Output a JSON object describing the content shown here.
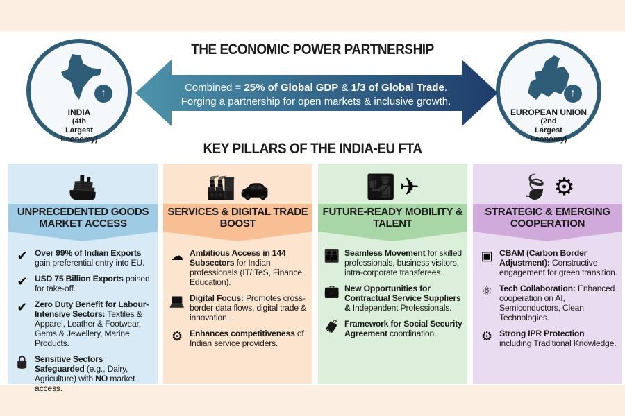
{
  "title": "THE ECONOMIC POWER PARTNERSHIP",
  "india": {
    "name": "INDIA",
    "rank": "(4th Largest Economy)"
  },
  "eu": {
    "name": "EUROPEAN UNION",
    "rank": "(2nd Largest Economy)"
  },
  "arrow": {
    "line1_pre": "Combined = ",
    "line1_bold": "25% of Global GDP",
    "line1_mid": " & ",
    "line1_bold2": "1/3 of Global Trade",
    "line1_end": ".",
    "line2": "Forging a partnership for open markets & inclusive growth."
  },
  "subtitle": "KEY PILLARS OF THE INDIA-EU FTA",
  "colors": {
    "navy": "#2f5d78",
    "arrow_start": "#4d93ab",
    "arrow_end": "#1e3c6a"
  },
  "columns": [
    {
      "title": "UNPRECEDENTED GOODS MARKET ACCESS",
      "bg": "#d7eaf6",
      "header": "#9fcbe5",
      "icons": [
        "ship-icon"
      ],
      "items": [
        {
          "icon": "check-circle-icon",
          "segments": [
            {
              "b": true,
              "t": "Over 99% of Indian Exports"
            },
            {
              "b": false,
              "t": " gain preferential entry into EU."
            }
          ]
        },
        {
          "icon": "check-circle-icon",
          "segments": [
            {
              "b": true,
              "t": "USD 75 Billion Exports"
            },
            {
              "b": false,
              "t": " poised for take-off."
            }
          ]
        },
        {
          "icon": "check-circle-icon",
          "segments": [
            {
              "b": true,
              "t": "Zero Duty Benefit for Labour-Intensive Sectors:"
            },
            {
              "b": false,
              "t": " Textiles & Apparel, Leather & Footwear, Gems & Jewellery, Marine Products."
            }
          ]
        },
        {
          "icon": "shield-lock-icon",
          "segments": [
            {
              "b": true,
              "t": "Sensitive Sectors Safeguarded"
            },
            {
              "b": false,
              "t": " (e.g., Dairy, Agriculture) with "
            },
            {
              "b": true,
              "t": "NO"
            },
            {
              "b": false,
              "t": " market access."
            }
          ]
        }
      ]
    },
    {
      "title": "SERVICES & DIGITAL TRADE BOOST",
      "bg": "#fde4cf",
      "header": "#f7bf93",
      "icons": [
        "factory-icon",
        "car-icon"
      ],
      "items": [
        {
          "icon": "cloud-network-icon",
          "segments": [
            {
              "b": true,
              "t": "Ambitious Access in 144 Subsectors"
            },
            {
              "b": false,
              "t": " for Indian professionals (IT/ITeS, Finance, Education)."
            }
          ]
        },
        {
          "icon": "laptop-icon",
          "segments": [
            {
              "b": true,
              "t": "Digital Focus:"
            },
            {
              "b": false,
              "t": " Promotes cross-border data flows, digital trade & innovation."
            }
          ]
        },
        {
          "icon": "gear-people-icon",
          "segments": [
            {
              "b": true,
              "t": "Enhances competitiveness"
            },
            {
              "b": false,
              "t": " of Indian service providers."
            }
          ]
        }
      ]
    },
    {
      "title": "FUTURE-READY MOBILITY & TALENT",
      "bg": "#dbefda",
      "header": "#a9d6a7",
      "icons": [
        "passport-icon",
        "airplane-icon"
      ],
      "items": [
        {
          "icon": "family-icon",
          "segments": [
            {
              "b": true,
              "t": "Seamless Movement"
            },
            {
              "b": false,
              "t": " for skilled professionals, business visitors, intra-corporate transferees."
            }
          ]
        },
        {
          "icon": "briefcase-icon",
          "segments": [
            {
              "b": true,
              "t": "New Opportunities for Contractual Service Suppliers &"
            },
            {
              "b": false,
              "t": " Independent Professionals."
            }
          ]
        },
        {
          "icon": "suitcase-icon",
          "segments": [
            {
              "b": true,
              "t": "Framework for Social Security Agreement"
            },
            {
              "b": false,
              "t": " coordination."
            }
          ]
        }
      ]
    },
    {
      "title": "STRATEGIC & EMERGING COOPERATION",
      "bg": "#eadcf0",
      "header": "#d0aada",
      "icons": [
        "leaf-icon",
        "gear-icon"
      ],
      "items": [
        {
          "icon": "chip-icon",
          "segments": [
            {
              "b": true,
              "t": "CBAM (Carbon Border Adjustment):"
            },
            {
              "b": false,
              "t": " Constructive engagement for green transition."
            }
          ]
        },
        {
          "icon": "atom-icon",
          "segments": [
            {
              "b": true,
              "t": "Tech Collaboration:"
            },
            {
              "b": false,
              "t": " Enhanced cooperation on AI, Semiconductors, Clean Technologies."
            }
          ]
        },
        {
          "icon": "gear-lock-icon",
          "segments": [
            {
              "b": true,
              "t": "Strong IPR Protection"
            },
            {
              "b": false,
              "t": " including Traditional Knowledge."
            }
          ]
        }
      ]
    }
  ]
}
